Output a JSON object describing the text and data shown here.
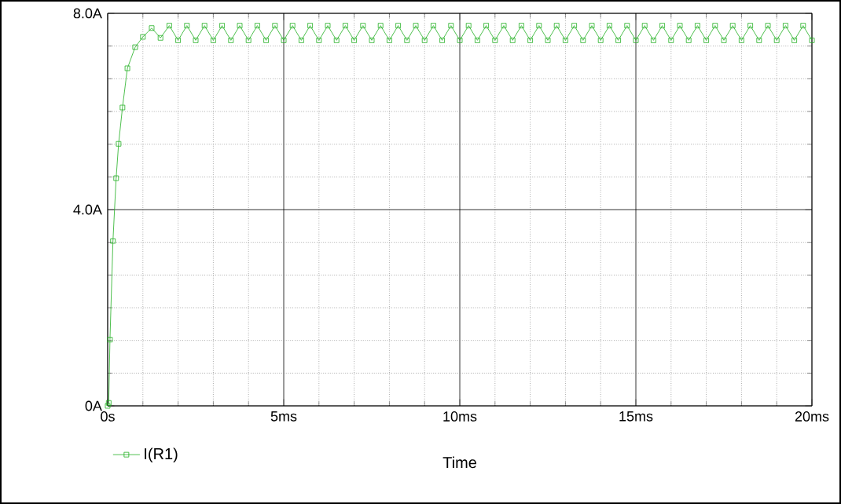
{
  "chart_data": {
    "type": "line",
    "xlabel": "Time",
    "xlim": [
      0,
      20
    ],
    "ylim": [
      0,
      8
    ],
    "xticks": [
      {
        "value": 0,
        "label": "0s"
      },
      {
        "value": 5,
        "label": "5ms"
      },
      {
        "value": 10,
        "label": "10ms"
      },
      {
        "value": 15,
        "label": "15ms"
      },
      {
        "value": 20,
        "label": "20ms"
      }
    ],
    "yticks": [
      {
        "value": 0,
        "label": "0A"
      },
      {
        "value": 4,
        "label": "4.0A"
      },
      {
        "value": 8,
        "label": "8.0A"
      }
    ],
    "grid": true,
    "legend": "bottom left",
    "marker": "square",
    "line_style": "solid",
    "series": [
      {
        "name": "I(R1)",
        "color": "#22b022",
        "x": [
          0,
          0.03,
          0.065,
          0.15,
          0.24,
          0.31,
          0.42,
          0.56,
          0.78,
          1.0,
          1.25,
          1.5,
          1.75,
          2.0,
          2.25,
          2.5,
          2.75,
          3.0,
          3.25,
          3.5,
          3.75,
          4.0,
          4.25,
          4.5,
          4.75,
          5.0,
          5.25,
          5.5,
          5.75,
          6.0,
          6.25,
          6.5,
          6.75,
          7.0,
          7.25,
          7.5,
          7.75,
          8.0,
          8.25,
          8.5,
          8.75,
          9.0,
          9.25,
          9.5,
          9.75,
          10.0,
          10.25,
          10.5,
          10.75,
          11.0,
          11.25,
          11.5,
          11.75,
          12.0,
          12.25,
          12.5,
          12.75,
          13.0,
          13.25,
          13.5,
          13.75,
          14.0,
          14.25,
          14.5,
          14.75,
          15.0,
          15.25,
          15.5,
          15.75,
          16.0,
          16.25,
          16.5,
          16.75,
          17.0,
          17.25,
          17.5,
          17.75,
          18.0,
          18.25,
          18.5,
          18.75,
          19.0,
          19.25,
          19.5,
          19.75,
          20.0
        ],
        "values": [
          0,
          0.06,
          1.35,
          3.36,
          4.64,
          5.34,
          6.08,
          6.88,
          7.31,
          7.52,
          7.7,
          7.5,
          7.75,
          7.45,
          7.75,
          7.45,
          7.75,
          7.45,
          7.75,
          7.45,
          7.75,
          7.45,
          7.75,
          7.45,
          7.75,
          7.45,
          7.75,
          7.45,
          7.75,
          7.45,
          7.75,
          7.45,
          7.75,
          7.45,
          7.75,
          7.45,
          7.75,
          7.45,
          7.75,
          7.45,
          7.75,
          7.45,
          7.75,
          7.45,
          7.75,
          7.45,
          7.75,
          7.45,
          7.75,
          7.45,
          7.75,
          7.45,
          7.75,
          7.45,
          7.75,
          7.45,
          7.75,
          7.45,
          7.75,
          7.45,
          7.75,
          7.45,
          7.75,
          7.45,
          7.75,
          7.45,
          7.75,
          7.45,
          7.75,
          7.45,
          7.75,
          7.45,
          7.75,
          7.45,
          7.75,
          7.45,
          7.75,
          7.45,
          7.75,
          7.45,
          7.75,
          7.45,
          7.75,
          7.45,
          7.75,
          7.45
        ]
      }
    ]
  }
}
